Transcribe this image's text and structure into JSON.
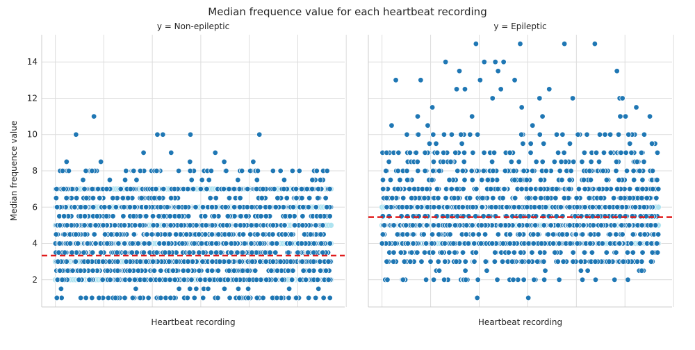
{
  "figure": {
    "title": "Median frequence value for each heartbeat recording"
  },
  "chart_data": [
    {
      "type": "scatter",
      "title": "y = Non-epileptic",
      "xlabel": "Heartbeat recording",
      "ylabel": "Median frequence value",
      "ylim": [
        0.5,
        15.5
      ],
      "yticks": [
        2,
        4,
        6,
        8,
        10,
        12,
        14
      ],
      "grid": true,
      "mean_line": {
        "value": 3.33,
        "color": "#e01b1b",
        "style": "dashed"
      },
      "colors": {
        "point": "#1f77b4",
        "point_edge": "#ffffff",
        "band": "#aee3f0"
      },
      "bands": [
        2,
        3,
        4,
        5,
        6,
        7
      ],
      "levels": [
        {
          "y": 1.0,
          "count": 70
        },
        {
          "y": 1.5,
          "count": 12
        },
        {
          "y": 2.0,
          "count": 180
        },
        {
          "y": 2.5,
          "count": 150
        },
        {
          "y": 3.0,
          "count": 180
        },
        {
          "y": 3.5,
          "count": 160
        },
        {
          "y": 4.0,
          "count": 180
        },
        {
          "y": 4.5,
          "count": 140
        },
        {
          "y": 5.0,
          "count": 180
        },
        {
          "y": 5.5,
          "count": 90
        },
        {
          "y": 6.0,
          "count": 150
        },
        {
          "y": 6.5,
          "count": 70
        },
        {
          "y": 7.0,
          "count": 120
        },
        {
          "y": 7.5,
          "count": 14
        },
        {
          "y": 8.0,
          "count": 55
        },
        {
          "y": 8.5,
          "count": 5
        }
      ],
      "outliers": [
        {
          "x": 0.075,
          "y": 10
        },
        {
          "x": 0.14,
          "y": 11
        },
        {
          "x": 0.37,
          "y": 10
        },
        {
          "x": 0.39,
          "y": 10
        },
        {
          "x": 0.42,
          "y": 9
        },
        {
          "x": 0.49,
          "y": 10
        },
        {
          "x": 0.32,
          "y": 9
        },
        {
          "x": 0.58,
          "y": 9
        },
        {
          "x": 0.74,
          "y": 10
        }
      ]
    },
    {
      "type": "scatter",
      "title": "y = Epileptic",
      "xlabel": "Heartbeat recording",
      "ylabel": "",
      "ylim": [
        0.5,
        15.5
      ],
      "yticks": [
        2,
        4,
        6,
        8,
        10,
        12,
        14
      ],
      "grid": true,
      "mean_line": {
        "value": 5.45,
        "color": "#e01b1b",
        "style": "dashed"
      },
      "colors": {
        "point": "#1f77b4",
        "point_edge": "#ffffff",
        "band": "#aee3f0"
      },
      "bands": [
        4,
        5,
        6
      ],
      "levels": [
        {
          "y": 1.0,
          "count": 2
        },
        {
          "y": 2.0,
          "count": 30
        },
        {
          "y": 2.5,
          "count": 10
        },
        {
          "y": 3.0,
          "count": 90
        },
        {
          "y": 3.5,
          "count": 50
        },
        {
          "y": 4.0,
          "count": 170
        },
        {
          "y": 4.5,
          "count": 90
        },
        {
          "y": 5.0,
          "count": 170
        },
        {
          "y": 5.5,
          "count": 110
        },
        {
          "y": 6.0,
          "count": 170
        },
        {
          "y": 6.5,
          "count": 100
        },
        {
          "y": 7.0,
          "count": 110
        },
        {
          "y": 7.5,
          "count": 60
        },
        {
          "y": 8.0,
          "count": 80
        },
        {
          "y": 8.5,
          "count": 35
        },
        {
          "y": 9.0,
          "count": 55
        },
        {
          "y": 9.5,
          "count": 10
        },
        {
          "y": 10.0,
          "count": 30
        },
        {
          "y": 10.5,
          "count": 4
        },
        {
          "y": 11.0,
          "count": 6
        },
        {
          "y": 11.5,
          "count": 2
        }
      ],
      "outliers": [
        {
          "x": 0.05,
          "y": 13
        },
        {
          "x": 0.14,
          "y": 13
        },
        {
          "x": 0.23,
          "y": 14
        },
        {
          "x": 0.27,
          "y": 12.5
        },
        {
          "x": 0.28,
          "y": 13.5
        },
        {
          "x": 0.3,
          "y": 12.5
        },
        {
          "x": 0.34,
          "y": 15
        },
        {
          "x": 0.355,
          "y": 13
        },
        {
          "x": 0.37,
          "y": 14
        },
        {
          "x": 0.4,
          "y": 12
        },
        {
          "x": 0.41,
          "y": 14
        },
        {
          "x": 0.42,
          "y": 13.5
        },
        {
          "x": 0.43,
          "y": 12.5
        },
        {
          "x": 0.44,
          "y": 14
        },
        {
          "x": 0.48,
          "y": 13
        },
        {
          "x": 0.5,
          "y": 15
        },
        {
          "x": 0.57,
          "y": 12
        },
        {
          "x": 0.605,
          "y": 12.5
        },
        {
          "x": 0.66,
          "y": 15
        },
        {
          "x": 0.69,
          "y": 12
        },
        {
          "x": 0.77,
          "y": 15
        },
        {
          "x": 0.85,
          "y": 13.5
        },
        {
          "x": 0.86,
          "y": 12
        },
        {
          "x": 0.87,
          "y": 12
        },
        {
          "x": 0.92,
          "y": 11.5
        }
      ]
    }
  ]
}
